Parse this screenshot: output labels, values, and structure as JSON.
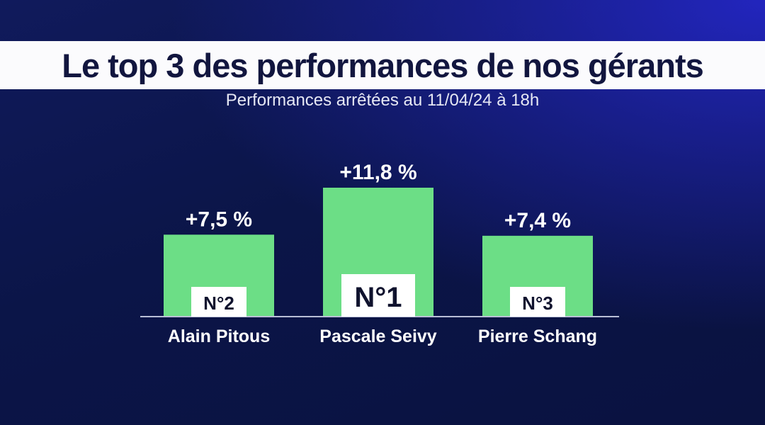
{
  "header": {
    "title": "Le top 3 des performances de nos gérants",
    "subtitle": "Performances arrêtées au 11/04/24 à 18h"
  },
  "colors": {
    "bar": "#6cde86",
    "baseline": "#b9bfd6",
    "banner": "#fbfbfd",
    "title": "#12163f",
    "background": "#0b1548"
  },
  "chart_data": {
    "type": "bar",
    "title": "Le top 3 des performances de nos gérants",
    "subtitle": "Performances arrêtées au 11/04/24 à 18h",
    "categories": [
      "Alain Pitous",
      "Pascale Seivy",
      "Pierre Schang"
    ],
    "values": [
      7.5,
      11.8,
      7.4
    ],
    "value_labels": [
      "+7,5 %",
      "+11,8 %",
      "+7,4 %"
    ],
    "ranks": [
      "N°2",
      "N°1",
      "N°3"
    ],
    "unit": "%",
    "ylim": [
      0,
      13.5
    ],
    "grid": false,
    "legend": "none"
  }
}
